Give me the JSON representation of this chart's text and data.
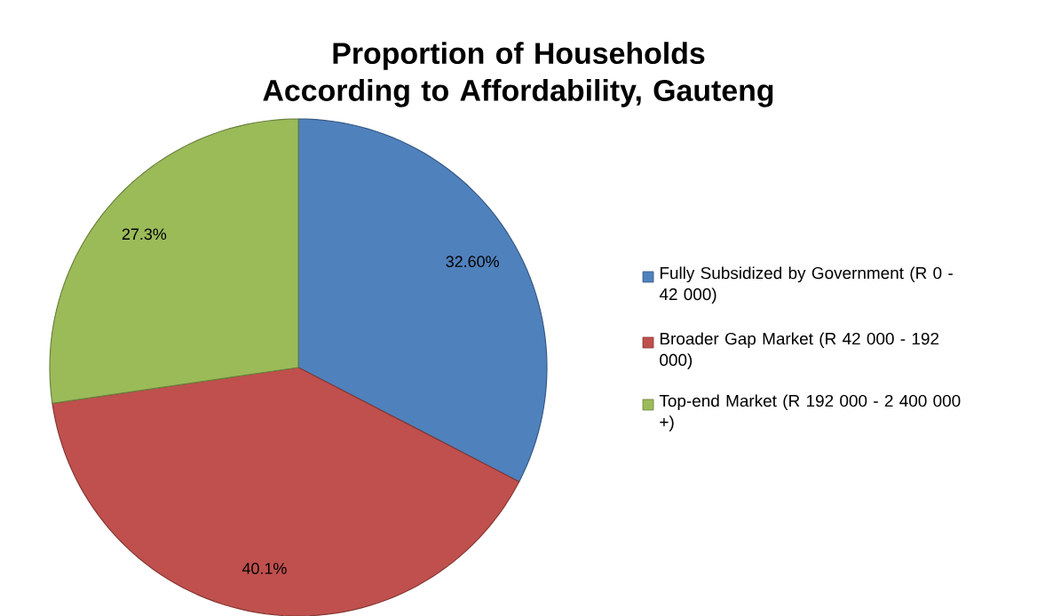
{
  "chart_data": {
    "type": "pie",
    "title": "Proportion of Households According to Affordability, Gauteng",
    "categories": [
      "Fully Subsidized by Government (R 0 - 42 000)",
      "Broader Gap Market (R 42 000 - 192 000)",
      "Top-end Market (R 192 000 - 2 400 000 +)"
    ],
    "values": [
      32.6,
      40.1,
      27.3
    ],
    "value_labels": [
      "32.60%",
      "40.1%",
      "27.3%"
    ],
    "colors": [
      "#4f81bd",
      "#c0504d",
      "#9bbb59"
    ],
    "legend": "right"
  }
}
